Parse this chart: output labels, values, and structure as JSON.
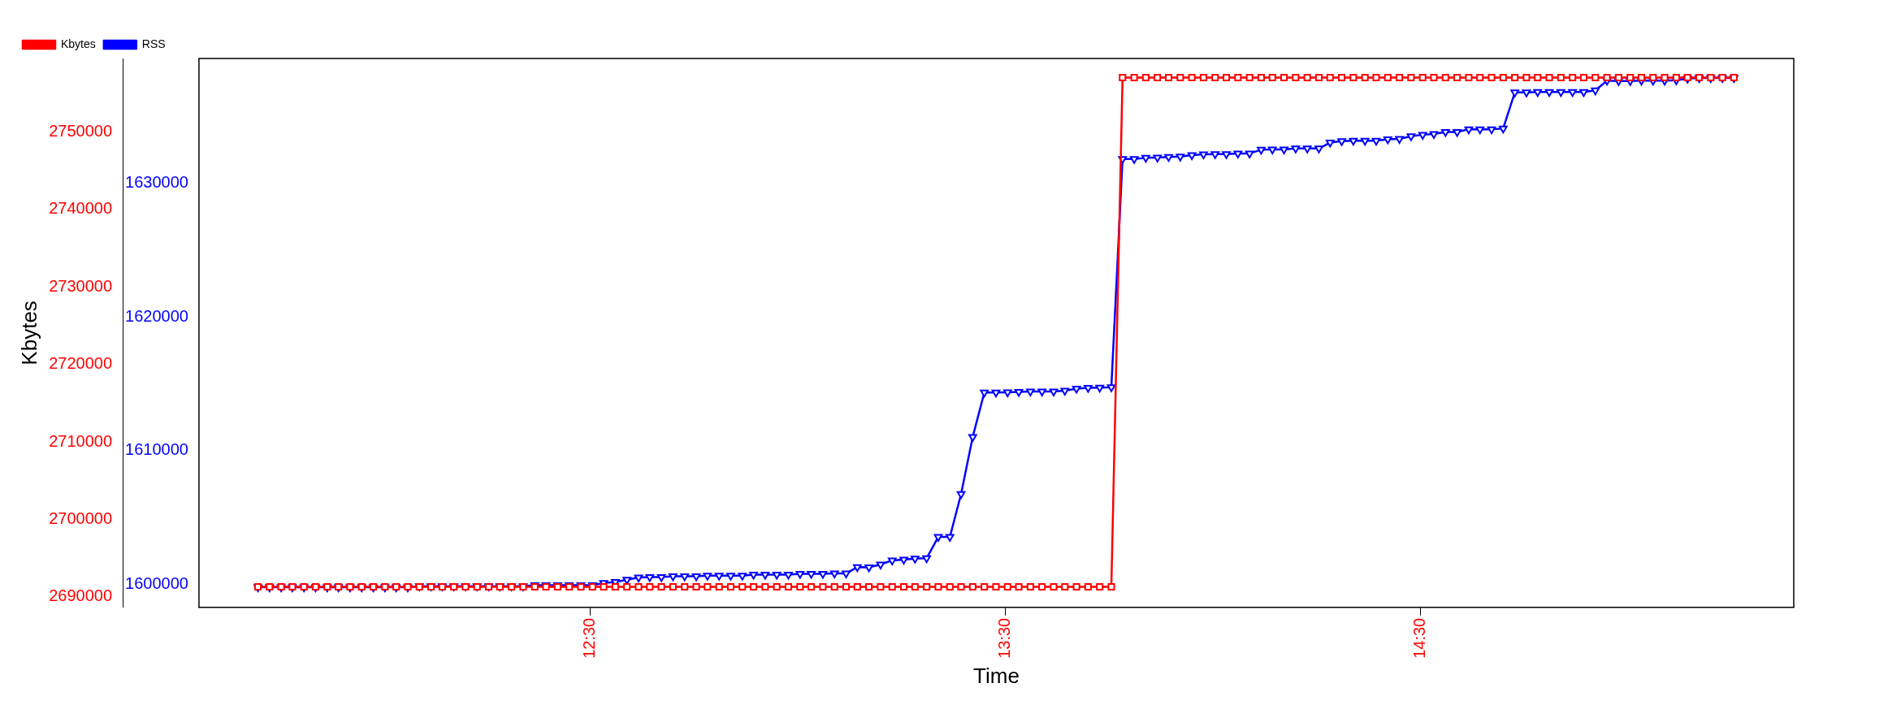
{
  "chart_data": {
    "type": "line",
    "xlabel": "Time",
    "ylabel": "Kbytes",
    "legend": "top left",
    "grid": false,
    "line_style": "solid",
    "xlim": [
      11.558,
      15.4
    ],
    "xticks": [
      {
        "value": 12.5,
        "label": "12:30"
      },
      {
        "value": 13.5,
        "label": "13:30"
      },
      {
        "value": 14.5,
        "label": "14:30"
      }
    ],
    "ylim": [
      2688660,
      2759470
    ],
    "yticks": [
      2690000,
      2700000,
      2710000,
      2720000,
      2730000,
      2740000,
      2750000
    ],
    "y2lim": [
      1598280,
      1639310
    ],
    "y2ticks": [
      1600000,
      1610000,
      1620000,
      1630000
    ],
    "x": [
      11.7,
      11.728,
      11.756,
      11.783,
      11.811,
      11.839,
      11.867,
      11.894,
      11.922,
      11.95,
      11.978,
      12.006,
      12.033,
      12.061,
      12.089,
      12.117,
      12.144,
      12.172,
      12.2,
      12.228,
      12.256,
      12.283,
      12.311,
      12.339,
      12.367,
      12.394,
      12.422,
      12.45,
      12.478,
      12.506,
      12.533,
      12.561,
      12.589,
      12.617,
      12.644,
      12.672,
      12.7,
      12.728,
      12.756,
      12.783,
      12.811,
      12.839,
      12.867,
      12.894,
      12.922,
      12.95,
      12.978,
      13.006,
      13.033,
      13.061,
      13.089,
      13.117,
      13.144,
      13.172,
      13.2,
      13.228,
      13.256,
      13.283,
      13.311,
      13.339,
      13.367,
      13.394,
      13.422,
      13.45,
      13.478,
      13.506,
      13.533,
      13.561,
      13.589,
      13.617,
      13.644,
      13.672,
      13.7,
      13.728,
      13.756,
      13.783,
      13.811,
      13.839,
      13.867,
      13.894,
      13.922,
      13.95,
      13.978,
      14.006,
      14.033,
      14.061,
      14.089,
      14.117,
      14.144,
      14.172,
      14.2,
      14.228,
      14.256,
      14.283,
      14.311,
      14.339,
      14.367,
      14.394,
      14.422,
      14.45,
      14.478,
      14.506,
      14.533,
      14.561,
      14.589,
      14.617,
      14.644,
      14.672,
      14.7,
      14.728,
      14.756,
      14.783,
      14.811,
      14.839,
      14.867,
      14.894,
      14.922,
      14.95,
      14.978,
      15.006,
      15.033,
      15.061,
      15.089,
      15.117,
      15.144,
      15.172,
      15.2,
      15.228,
      15.256
    ],
    "series": [
      {
        "name": "Kbytes",
        "color": "#ff0000",
        "marker": "square",
        "axis": "y",
        "values": [
          2691300,
          2691300,
          2691300,
          2691300,
          2691300,
          2691300,
          2691300,
          2691300,
          2691300,
          2691300,
          2691300,
          2691300,
          2691300,
          2691300,
          2691300,
          2691300,
          2691300,
          2691300,
          2691300,
          2691300,
          2691300,
          2691300,
          2691300,
          2691300,
          2691300,
          2691300,
          2691300,
          2691300,
          2691300,
          2691300,
          2691300,
          2691300,
          2691300,
          2691300,
          2691300,
          2691300,
          2691300,
          2691300,
          2691300,
          2691300,
          2691300,
          2691300,
          2691300,
          2691300,
          2691300,
          2691300,
          2691300,
          2691300,
          2691300,
          2691300,
          2691300,
          2691300,
          2691300,
          2691300,
          2691300,
          2691300,
          2691300,
          2691300,
          2691300,
          2691300,
          2691300,
          2691300,
          2691300,
          2691300,
          2691300,
          2691300,
          2691300,
          2691300,
          2691300,
          2691300,
          2691300,
          2691300,
          2691300,
          2691300,
          2691300,
          2757000,
          2757000,
          2757000,
          2757000,
          2757000,
          2757000,
          2757000,
          2757000,
          2757000,
          2757000,
          2757000,
          2757000,
          2757000,
          2757000,
          2757000,
          2757000,
          2757000,
          2757000,
          2757000,
          2757000,
          2757000,
          2757000,
          2757000,
          2757000,
          2757000,
          2757000,
          2757000,
          2757000,
          2757000,
          2757000,
          2757000,
          2757000,
          2757000,
          2757000,
          2757000,
          2757000,
          2757000,
          2757000,
          2757000,
          2757000,
          2757000,
          2757000,
          2757000,
          2757000,
          2757000,
          2757000,
          2757000,
          2757000,
          2757000,
          2757000,
          2757000,
          2757000,
          2757000,
          2757000
        ]
      },
      {
        "name": "RSS",
        "color": "#0000ff",
        "marker": "triangle",
        "axis": "y2",
        "values": [
          1599790,
          1599790,
          1599790,
          1599790,
          1599790,
          1599790,
          1599790,
          1599790,
          1599790,
          1599790,
          1599790,
          1599790,
          1599790,
          1599790,
          1599860,
          1599860,
          1599860,
          1599860,
          1599860,
          1599860,
          1599860,
          1599860,
          1599860,
          1599860,
          1599930,
          1599930,
          1599930,
          1599930,
          1599930,
          1599930,
          1600100,
          1600170,
          1600340,
          1600510,
          1600540,
          1600540,
          1600600,
          1600600,
          1600600,
          1600650,
          1600650,
          1600650,
          1600650,
          1600720,
          1600720,
          1600720,
          1600720,
          1600790,
          1600790,
          1600790,
          1600820,
          1600820,
          1601280,
          1601270,
          1601480,
          1601790,
          1601840,
          1601920,
          1601950,
          1603540,
          1603540,
          1606750,
          1611020,
          1614340,
          1614340,
          1614360,
          1614390,
          1614420,
          1614420,
          1614420,
          1614470,
          1614630,
          1614690,
          1614710,
          1614740,
          1631800,
          1631800,
          1631880,
          1631910,
          1631950,
          1631980,
          1632090,
          1632140,
          1632160,
          1632160,
          1632210,
          1632210,
          1632490,
          1632510,
          1632510,
          1632580,
          1632580,
          1632580,
          1633020,
          1633130,
          1633160,
          1633160,
          1633160,
          1633270,
          1633300,
          1633500,
          1633610,
          1633660,
          1633810,
          1633810,
          1634020,
          1634020,
          1634020,
          1634080,
          1636770,
          1636770,
          1636810,
          1636810,
          1636810,
          1636810,
          1636810,
          1636930,
          1637650,
          1637620,
          1637620,
          1637650,
          1637650,
          1637650,
          1637690,
          1637810,
          1637850,
          1637850,
          1637850,
          1637850
        ]
      }
    ]
  }
}
